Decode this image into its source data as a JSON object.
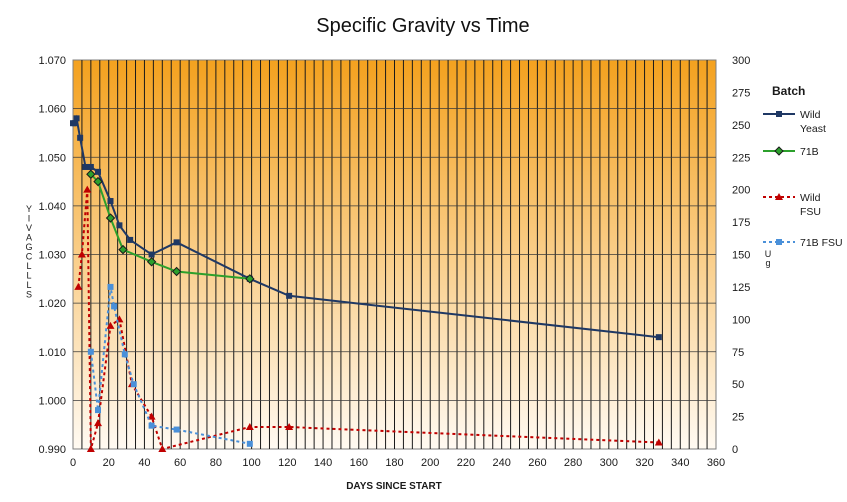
{
  "chart_data": {
    "type": "line",
    "title": "Specific Gravity vs Time",
    "xlabel": "DAYS SINCE START",
    "ylabel": "",
    "ylabel_stacked": "YIVAGCLLLS",
    "y2label_stacked": "Ug",
    "xlim": [
      0,
      360
    ],
    "ylim": [
      0.99,
      1.07
    ],
    "y2lim": [
      0,
      300
    ],
    "x_ticks": [
      0,
      20,
      40,
      60,
      80,
      100,
      120,
      140,
      160,
      180,
      200,
      220,
      240,
      260,
      280,
      300,
      320,
      340,
      360
    ],
    "y_ticks": [
      "0.990",
      "1.000",
      "1.010",
      "1.020",
      "1.030",
      "1.040",
      "1.050",
      "1.060",
      "1.070"
    ],
    "y2_ticks": [
      0,
      25,
      50,
      75,
      100,
      125,
      150,
      175,
      200,
      225,
      250,
      275,
      300
    ],
    "grid_vertical": true,
    "grid_horizontal": true,
    "background_gradient": [
      "#f4a11e",
      "#fffaf2"
    ],
    "legend_title": "Batch",
    "legend_position": "right",
    "series": [
      {
        "name": "Wild Yeast",
        "legend_lines": [
          "Wild",
          "Yeast"
        ],
        "axis": "left",
        "color": "#1f3864",
        "dash": "",
        "marker": "square",
        "x": [
          0,
          1,
          2,
          4,
          7,
          10,
          14,
          21,
          26,
          32,
          44,
          58,
          99,
          121,
          328
        ],
        "y": [
          1.057,
          1.057,
          1.058,
          1.054,
          1.048,
          1.048,
          1.047,
          1.041,
          1.036,
          1.033,
          1.03,
          1.0325,
          1.025,
          1.0215,
          1.013
        ]
      },
      {
        "name": "71B",
        "legend_lines": [
          "71B"
        ],
        "axis": "left",
        "color": "#2ca02c",
        "dash": "",
        "marker": "diamond",
        "marker_stroke": "#1a1a1a",
        "x": [
          10,
          14,
          21,
          28,
          44,
          58,
          99
        ],
        "y": [
          1.0465,
          1.045,
          1.0375,
          1.031,
          1.0285,
          1.0265,
          1.025
        ]
      },
      {
        "name": "Wild FSU",
        "legend_lines": [
          "Wild",
          "FSU"
        ],
        "axis": "right",
        "color": "#c00000",
        "dash": "3,3",
        "marker": "triangle",
        "x": [
          3,
          5,
          8,
          10,
          14,
          21,
          26,
          33,
          44,
          50,
          99,
          121,
          328
        ],
        "y": [
          125,
          150,
          200,
          0,
          20,
          95,
          100,
          50,
          25,
          0,
          17,
          17,
          5
        ]
      },
      {
        "name": "71B FSU",
        "legend_lines": [
          "71B FSU"
        ],
        "axis": "right",
        "color": "#4a90d9",
        "dash": "3,3",
        "marker": "square",
        "x": [
          10,
          14,
          21,
          23,
          29,
          34,
          44,
          58,
          99
        ],
        "y": [
          75,
          30,
          125,
          110,
          73,
          50,
          18,
          15,
          4
        ]
      }
    ]
  }
}
